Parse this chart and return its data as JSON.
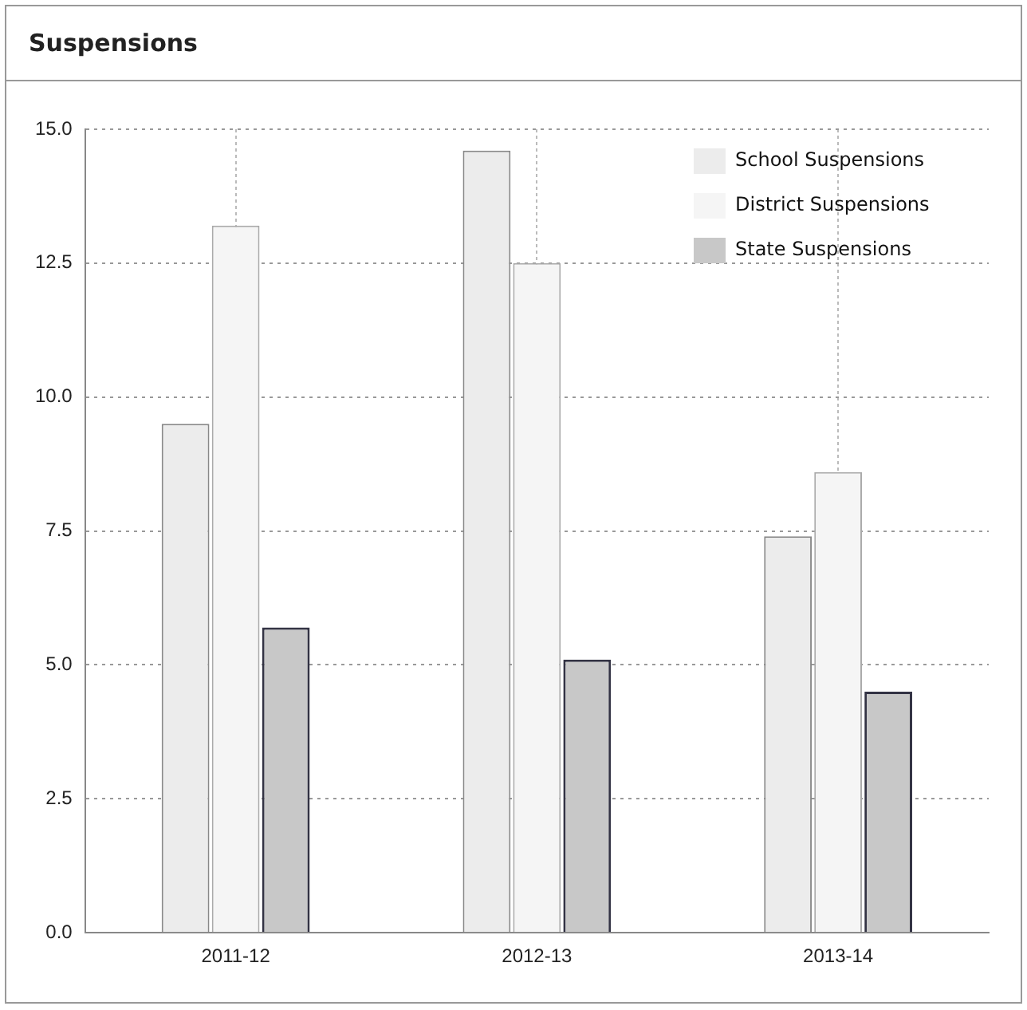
{
  "chart_data": {
    "type": "bar",
    "title": "Suspensions",
    "categories": [
      "2011-12",
      "2012-13",
      "2013-14"
    ],
    "series": [
      {
        "name": "School Suspensions",
        "color": "#ececec",
        "values": [
          9.5,
          14.6,
          7.4
        ]
      },
      {
        "name": "District Suspensions",
        "color": "#f5f5f5",
        "values": [
          13.2,
          12.5,
          8.6
        ]
      },
      {
        "name": "State Suspensions",
        "color": "#c8c8c8",
        "values": [
          5.7,
          5.1,
          4.5
        ]
      }
    ],
    "ylim": [
      0,
      15
    ],
    "yticks": [
      {
        "value": 0,
        "label": "0.0"
      },
      {
        "value": 2.5,
        "label": "2.5"
      },
      {
        "value": 5,
        "label": "5.0"
      },
      {
        "value": 7.5,
        "label": "7.5"
      },
      {
        "value": 10,
        "label": "10.0"
      },
      {
        "value": 12.5,
        "label": "12.5"
      },
      {
        "value": 15,
        "label": "15.0"
      }
    ],
    "grid": true,
    "legend": "top right"
  }
}
